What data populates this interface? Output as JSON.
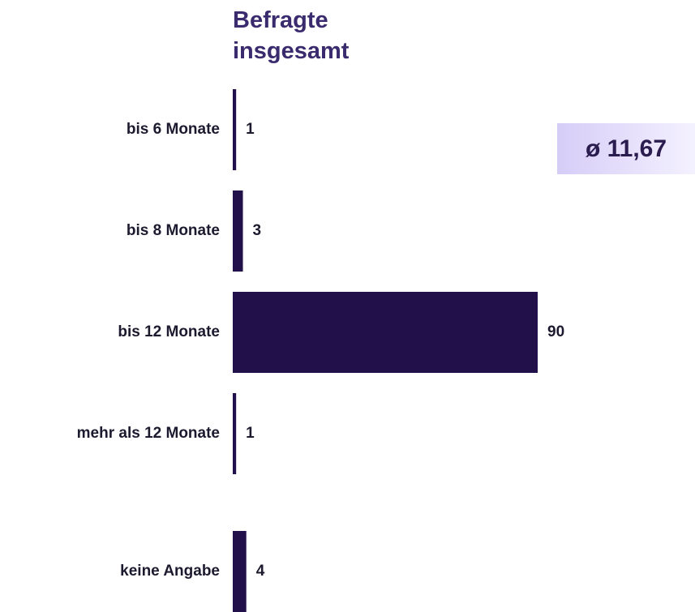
{
  "chart_data": {
    "type": "bar",
    "orientation": "horizontal",
    "title": "Befragte\ninsgesamt",
    "annotation": "ø 11,67",
    "categories": [
      "bis 6 Monate",
      "bis 8 Monate",
      "bis 12 Monate",
      "mehr als 12 Monate",
      "keine Angabe"
    ],
    "values": [
      1,
      3,
      90,
      1,
      4
    ],
    "color": "#22104a"
  }
}
